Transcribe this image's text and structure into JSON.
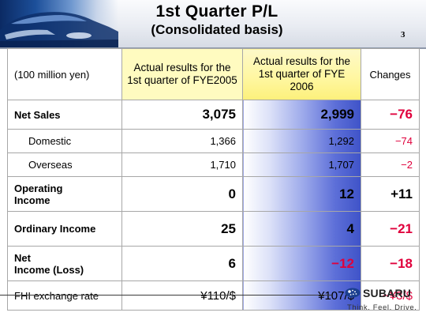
{
  "header": {
    "title": "1st Quarter P/L",
    "subtitle": "(Consolidated basis)",
    "page_number": "3"
  },
  "table": {
    "unit_label": "(100 million yen)",
    "col_prev": "Actual results for the 1st quarter of FYE2005",
    "col_curr": "Actual results for the 1st quarter of FYE 2006",
    "col_changes": "Changes",
    "rows": [
      {
        "label": "Net Sales",
        "prev": "3,075",
        "curr": "2,999",
        "change": "−76"
      },
      {
        "label": "Domestic",
        "prev": "1,366",
        "curr": "1,292",
        "change": "−74"
      },
      {
        "label": "Overseas",
        "prev": "1,710",
        "curr": "1,707",
        "change": "−2"
      },
      {
        "label_line1": "Operating",
        "label_line2": "Income",
        "prev": "0",
        "curr": "12",
        "change": "+11"
      },
      {
        "label": "Ordinary Income",
        "prev": "25",
        "curr": "4",
        "change": "−21"
      },
      {
        "label_line1": "Net",
        "label_line2": "Income (Loss)",
        "prev": "6",
        "curr": "−12",
        "change": "−18"
      },
      {
        "label": "FHI exchange rate",
        "prev": "¥110/$",
        "curr": "¥107/$",
        "change": "−¥3/$"
      }
    ]
  },
  "footer": {
    "brand": "SUBARU",
    "tagline": "Think. Feel. Drive."
  },
  "colors": {
    "negative": "#e0003c",
    "header_highlight": "#fff7a2",
    "column_gradient_dark": "#3f53c8"
  },
  "icons": {
    "car": "car-photo-icon",
    "brand_mark": "subaru-pleiades-logo-icon"
  }
}
